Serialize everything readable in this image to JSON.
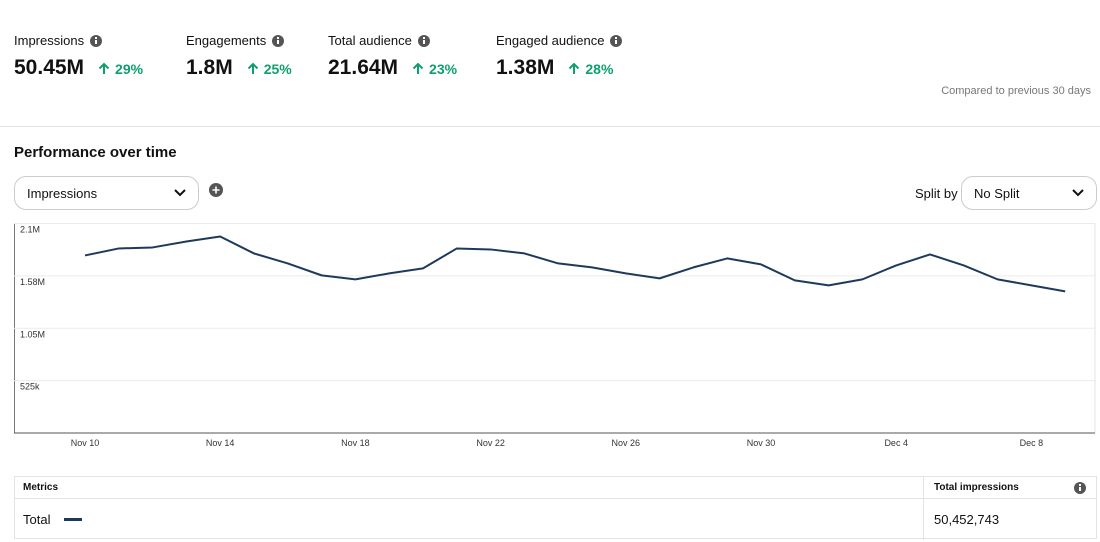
{
  "metrics": [
    {
      "label": "Impressions",
      "value": "50.45M",
      "change": "29%"
    },
    {
      "label": "Engagements",
      "value": "1.8M",
      "change": "25%"
    },
    {
      "label": "Total audience",
      "value": "21.64M",
      "change": "23%"
    },
    {
      "label": "Engaged audience",
      "value": "1.38M",
      "change": "28%"
    }
  ],
  "comparison": "Compared to previous 30 days",
  "section_title": "Performance over time",
  "metric_select": "Impressions",
  "split_label": "Split by",
  "split_select": "No Split",
  "table": {
    "headers": [
      "Metrics",
      "Total impressions"
    ],
    "total": "50,452,743"
  },
  "chart_data": {
    "type": "line",
    "categories": [
      "Nov 10",
      null,
      null,
      null,
      "Nov 14",
      null,
      null,
      null,
      "Nov 18",
      null,
      null,
      null,
      "Nov 22",
      null,
      null,
      null,
      "Nov 26",
      null,
      null,
      null,
      "Nov 30",
      null,
      null,
      null,
      "Dec 4",
      null,
      null,
      null,
      "Dec 8",
      null
    ],
    "series": [
      {
        "name": "Total",
        "color": "#1d3a5c",
        "values": [
          1780000,
          1850000,
          1860000,
          1920000,
          1970000,
          1800000,
          1700000,
          1580000,
          1540000,
          1600000,
          1650000,
          1850000,
          1840000,
          1800000,
          1700000,
          1660000,
          1600000,
          1550000,
          1660000,
          1750000,
          1690000,
          1530000,
          1480000,
          1540000,
          1680000,
          1790000,
          1680000,
          1540000,
          1480000,
          1420000
        ]
      }
    ],
    "ylim": [
      0,
      2100000
    ],
    "yticks": [
      {
        "value": 525000,
        "label": "525k"
      },
      {
        "value": 1050000,
        "label": "1.05M"
      },
      {
        "value": 1575000,
        "label": "1.58M"
      },
      {
        "value": 2100000,
        "label": "2.1M"
      }
    ],
    "grid": true
  }
}
